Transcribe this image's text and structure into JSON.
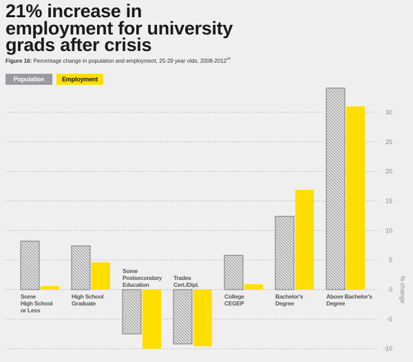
{
  "header": {
    "title_lines": [
      "21% increase in",
      "employment for university",
      "grads after crisis"
    ],
    "figure_label": "Figure 16:",
    "figure_caption": " Percentage change in population and employment, 25-29 year olds, 2008-2012",
    "footnote_ref": "24"
  },
  "colors": {
    "population": "#9b9b9f",
    "population_hatch": "#6e6e6e",
    "employment": "#ffde00",
    "background": "#efefef",
    "grid": "#b8b8b8"
  },
  "chart_data": {
    "type": "bar",
    "title": "21% increase in employment for university grads after crisis",
    "subtitle": "Figure 16: Percentage change in population and employment, 25-29 year olds, 2008-2012",
    "xlabel": "",
    "ylabel": "% change",
    "ylim": [
      -10,
      35
    ],
    "yticks": [
      -10,
      -5,
      0,
      5,
      10,
      15,
      20,
      25,
      30
    ],
    "grid": true,
    "y_axis_side": "right",
    "legend_position": "top-left",
    "categories": [
      [
        "Some",
        "High School",
        "or Less"
      ],
      [
        "High School",
        "Graduate"
      ],
      [
        "Some",
        "Postsecondary",
        "Education"
      ],
      [
        "Trades",
        "Cert./Dipl."
      ],
      [
        "College",
        "CEGEP"
      ],
      [
        "Bachelor's",
        "Degree"
      ],
      [
        "Above Bachelor's",
        "Degree"
      ]
    ],
    "series": [
      {
        "name": "Population",
        "pattern": "hatched",
        "values": [
          8.2,
          7.4,
          -7.5,
          -9.2,
          5.8,
          12.4,
          34.1
        ]
      },
      {
        "name": "Employment",
        "pattern": "solid",
        "values": [
          0.6,
          4.6,
          -10.0,
          -9.6,
          0.9,
          16.9,
          31.0
        ]
      }
    ]
  }
}
